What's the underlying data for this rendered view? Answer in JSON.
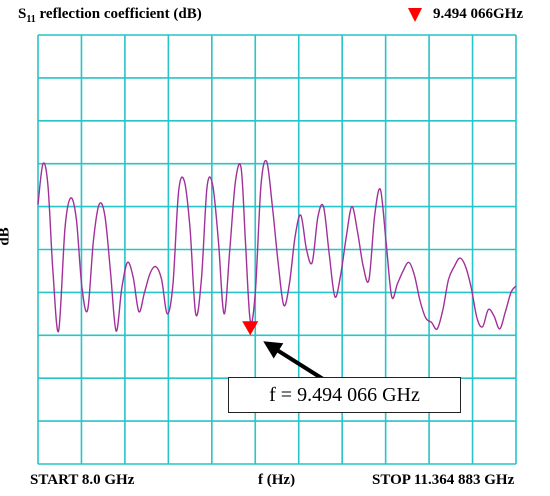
{
  "chart_data": {
    "type": "line",
    "title_main": "S",
    "title_sub": "11",
    "title_rest": " reflection coefficient (dB)",
    "ylabel": "dB",
    "xlabel": "f (Hz)",
    "start_label": "START 8.0 GHz",
    "stop_label": "STOP 11.364 883 GHz",
    "marker_readout": "9.494 066GHz",
    "annotation": "f = 9.494 066 GHz",
    "x_range_ghz": [
      8.0,
      11.364883
    ],
    "y_range_div": [
      0,
      10
    ],
    "grid": true,
    "grid_divisions": {
      "x": 11,
      "y": 10
    },
    "colors": {
      "grid": "#27c4c8",
      "trace": "#a0309a",
      "marker": "#ff0000",
      "arrow": "#000000"
    },
    "series": [
      {
        "x": [
          8.0,
          8.035,
          8.07,
          8.105,
          8.145,
          8.19,
          8.23,
          8.27,
          8.31,
          8.35,
          8.39,
          8.43,
          8.47,
          8.51,
          8.55,
          8.59,
          8.63,
          8.67,
          8.71,
          8.75,
          8.79,
          8.83,
          8.87,
          8.91,
          8.95,
          8.99,
          9.03,
          9.07,
          9.11,
          9.15,
          9.19,
          9.23,
          9.27,
          9.31,
          9.35,
          9.39,
          9.43,
          9.46,
          9.494,
          9.53,
          9.57,
          9.61,
          9.65,
          9.69,
          9.73,
          9.77,
          9.81,
          9.85,
          9.89,
          9.93,
          9.97,
          10.01,
          10.05,
          10.09,
          10.13,
          10.17,
          10.21,
          10.25,
          10.29,
          10.33,
          10.37,
          10.41,
          10.45,
          10.49,
          10.53,
          10.57,
          10.61,
          10.65,
          10.69,
          10.73,
          10.77,
          10.81,
          10.85,
          10.89,
          10.93,
          10.97,
          11.01,
          11.05,
          11.09,
          11.13,
          11.17,
          11.21,
          11.25,
          11.29,
          11.33,
          11.364883
        ],
        "y": [
          6.05,
          7.0,
          6.5,
          4.5,
          3.1,
          5.5,
          6.2,
          5.7,
          4.1,
          3.6,
          5.2,
          6.05,
          5.8,
          4.5,
          3.1,
          4.1,
          4.7,
          4.35,
          3.55,
          4.0,
          4.45,
          4.6,
          4.3,
          3.5,
          4.2,
          6.35,
          6.6,
          5.5,
          3.5,
          4.3,
          6.45,
          6.5,
          5.2,
          3.5,
          5.0,
          6.6,
          6.9,
          5.2,
          3.35,
          4.0,
          6.5,
          7.05,
          6.0,
          4.7,
          3.7,
          4.2,
          5.3,
          5.8,
          5.0,
          4.7,
          5.75,
          6.0,
          4.9,
          3.9,
          4.4,
          5.3,
          6.0,
          5.4,
          4.6,
          4.3,
          5.8,
          6.4,
          5.2,
          3.9,
          4.2,
          4.5,
          4.7,
          4.4,
          3.8,
          3.4,
          3.3,
          3.15,
          3.6,
          4.3,
          4.6,
          4.8,
          4.6,
          4.1,
          3.4,
          3.2,
          3.6,
          3.45,
          3.15,
          3.55,
          4.0,
          4.15
        ]
      }
    ],
    "marker_x_ghz": 9.494066
  }
}
